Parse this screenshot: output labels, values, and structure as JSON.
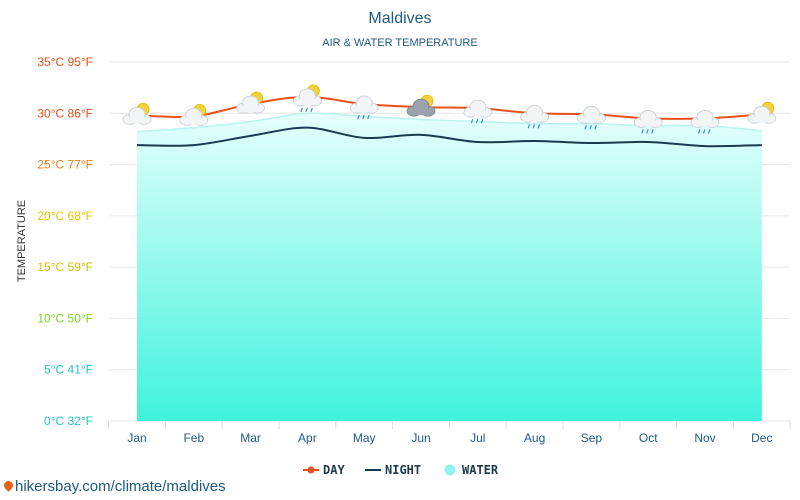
{
  "chart_data": {
    "type": "line",
    "title": "Maldives",
    "subtitle": "AIR & WATER TEMPERATURE",
    "ylabel": "TEMPERATURE",
    "ylim": [
      0,
      35
    ],
    "y_ticks": [
      {
        "c": 0,
        "label": "0°C 32°F",
        "color": "#1ec8c8"
      },
      {
        "c": 5,
        "label": "5°C 41°F",
        "color": "#1ec8c8"
      },
      {
        "c": 10,
        "label": "10°C 50°F",
        "color": "#7ed321"
      },
      {
        "c": 15,
        "label": "15°C 59°F",
        "color": "#c9c400"
      },
      {
        "c": 20,
        "label": "20°C 68°F",
        "color": "#e8c700"
      },
      {
        "c": 25,
        "label": "25°C 77°F",
        "color": "#e8801c"
      },
      {
        "c": 30,
        "label": "30°C 86°F",
        "color": "#e8501c"
      },
      {
        "c": 35,
        "label": "35°C 95°F",
        "color": "#e8501c"
      }
    ],
    "categories": [
      "Jan",
      "Feb",
      "Mar",
      "Apr",
      "May",
      "Jun",
      "Jul",
      "Aug",
      "Sep",
      "Oct",
      "Nov",
      "Dec"
    ],
    "series": [
      {
        "name": "DAY",
        "color": "#e8501c",
        "values": [
          29.8,
          29.7,
          30.9,
          31.6,
          30.9,
          30.6,
          30.5,
          30.0,
          29.9,
          29.5,
          29.5,
          29.9
        ]
      },
      {
        "name": "NIGHT",
        "color": "#1a3a50",
        "values": [
          26.9,
          26.9,
          27.8,
          28.6,
          27.6,
          27.9,
          27.2,
          27.3,
          27.1,
          27.2,
          26.8,
          26.9
        ]
      },
      {
        "name": "WATER",
        "color": "#8ef5ee",
        "values": [
          28.2,
          28.6,
          29.2,
          30.0,
          29.7,
          29.4,
          29.2,
          29.0,
          29.0,
          28.8,
          28.8,
          28.3
        ]
      }
    ],
    "weather_icons": [
      "sun-cloud-icon",
      "sun-cloud-icon",
      "sun-cloud-icon",
      "sun-rain-cloud-icon",
      "rain-cloud-icon",
      "sun-dark-cloud-icon",
      "rain-cloud-icon",
      "rain-cloud-icon",
      "rain-cloud-icon",
      "rain-cloud-icon",
      "rain-cloud-icon",
      "sun-cloud-icon"
    ],
    "legend": [
      "DAY",
      "NIGHT",
      "WATER"
    ],
    "legend_position": "bottom-center",
    "grid": true
  },
  "source": "hikersbay.com/climate/maldives"
}
